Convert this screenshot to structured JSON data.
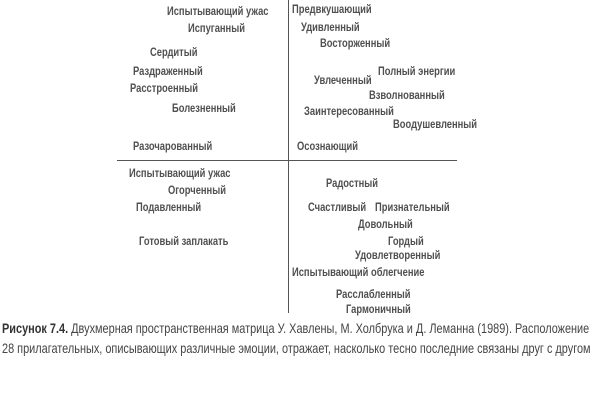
{
  "diagram": {
    "upper_left": [
      "Испытывающий ужас",
      "Испуганный",
      "Сердитый",
      "Раздраженный",
      "Расстроенный",
      "Болезненный",
      "Разочарованный"
    ],
    "upper_right": [
      "Предвкушающий",
      "Удивленный",
      "Восторженный",
      "Полный энергии",
      "Увлеченный",
      "Взволнованный",
      "Заинтересованный",
      "Воодушевленный",
      "Осознающий"
    ],
    "lower_left": [
      "Испытывающий ужас",
      "Огорченный",
      "Подавленный",
      "Готовый заплакать"
    ],
    "lower_right": [
      "Радостный",
      "Счастливый",
      "Признательный",
      "Довольный",
      "Гордый",
      "Удовлетворенный",
      "Испытывающий облегчение",
      "Расслабленный",
      "Гармоничный"
    ]
  },
  "caption": {
    "label": "Рисунок 7.4.",
    "text": " Двухмерная пространственная матрица У. Хавлены, М. Холбрука и Д. Леманна (1989). Расположение 28 прилагательных, описывающих различные эмоции, отражает, насколько тесно последние связаны друг с другом"
  }
}
